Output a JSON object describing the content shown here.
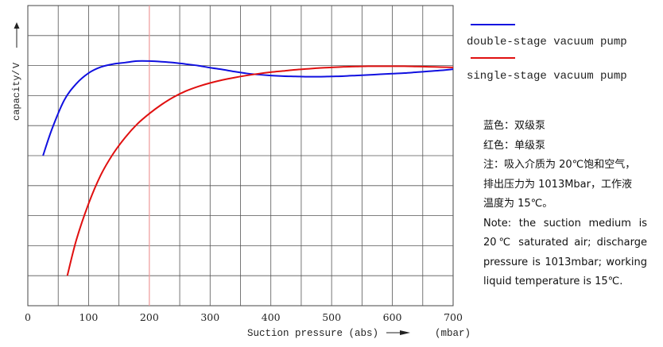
{
  "chart_data": {
    "type": "line",
    "xlabel": "Suction pressure (abs)",
    "x_unit": "(mbar)",
    "ylabel": "capacity",
    "xlim": [
      0,
      700
    ],
    "x_ticks": [
      0,
      100,
      200,
      300,
      400,
      500,
      600,
      700
    ],
    "x_tick_labels": [
      "0",
      "100",
      "200",
      "300",
      "400",
      "500",
      "600",
      "700"
    ],
    "y_gridlines": 10,
    "grid": true,
    "highlight_x": 200,
    "highlight_color": "#f4a0a0",
    "legend_position": "right",
    "series": [
      {
        "name": "double-stage vacuum pump",
        "color": "#1010e0",
        "x": [
          25,
          40,
          60,
          80,
          100,
          120,
          140,
          160,
          180,
          200,
          220,
          240,
          260,
          280,
          300,
          320,
          340,
          360,
          380,
          400,
          420,
          440,
          460,
          480,
          500,
          520,
          540,
          560,
          580,
          600,
          620,
          640,
          660,
          680,
          700
        ],
        "y": [
          5.0,
          5.9,
          6.85,
          7.4,
          7.75,
          7.95,
          8.05,
          8.1,
          8.15,
          8.15,
          8.13,
          8.1,
          8.05,
          8.0,
          7.93,
          7.87,
          7.8,
          7.74,
          7.7,
          7.67,
          7.65,
          7.64,
          7.63,
          7.63,
          7.64,
          7.65,
          7.67,
          7.69,
          7.71,
          7.73,
          7.75,
          7.78,
          7.81,
          7.84,
          7.88
        ]
      },
      {
        "name": "single-stage vacuum pump",
        "color": "#e01010",
        "x": [
          65,
          80,
          100,
          120,
          140,
          160,
          180,
          200,
          220,
          240,
          260,
          280,
          300,
          320,
          340,
          360,
          380,
          400,
          420,
          440,
          460,
          480,
          500,
          520,
          540,
          560,
          580,
          600,
          620,
          640,
          660,
          680,
          700
        ],
        "y": [
          1.0,
          2.2,
          3.4,
          4.35,
          5.05,
          5.6,
          6.05,
          6.4,
          6.7,
          6.95,
          7.15,
          7.3,
          7.42,
          7.52,
          7.6,
          7.67,
          7.73,
          7.78,
          7.82,
          7.86,
          7.89,
          7.92,
          7.94,
          7.96,
          7.97,
          7.98,
          7.98,
          7.98,
          7.98,
          7.97,
          7.96,
          7.95,
          7.94
        ]
      }
    ]
  },
  "notes": {
    "line1": "蓝色：双级泵",
    "line2": "红色：单级泵",
    "line3": "注：吸入介质为 20℃饱和空气，",
    "line4": "排出压力为 1013Mbar，工作液",
    "line5": "温度为 15℃。",
    "line6": "Note: the suction medium is",
    "line7": "20℃ saturated air; discharge",
    "line8": "pressure is 1013mbar; working",
    "line9": "liquid temperature is 15℃."
  }
}
